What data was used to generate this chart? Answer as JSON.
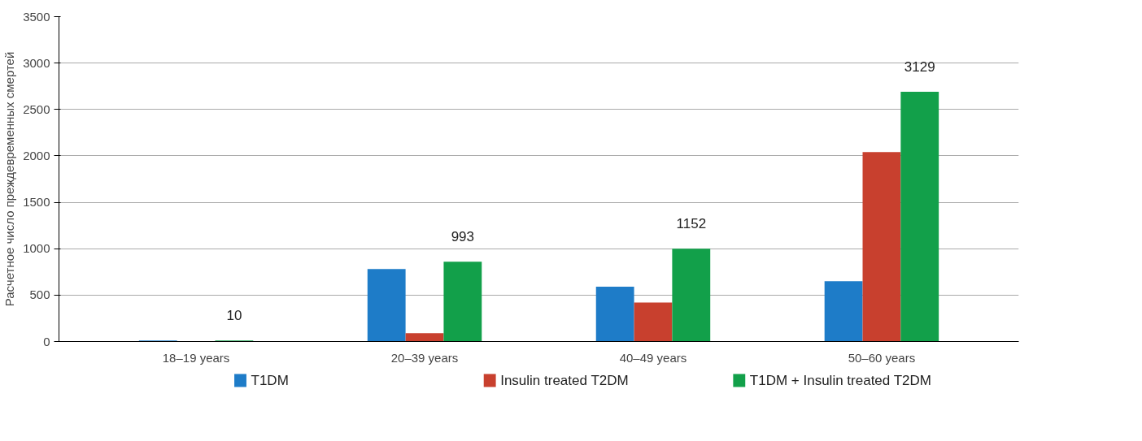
{
  "chart_data": {
    "type": "bar",
    "ylabel": "Расчетное число преждевременных смертей",
    "categories": [
      "18–19 years",
      "20–39 years",
      "40–49 years",
      "50–60 years"
    ],
    "series": [
      {
        "name": "T1DM",
        "color": "#1e7cc8",
        "values": [
          10,
          780,
          590,
          650
        ]
      },
      {
        "name": "Insulin treated T2DM",
        "color": "#c8402e",
        "values": [
          0,
          90,
          420,
          2040
        ]
      },
      {
        "name": "T1DM + Insulin treated T2DM",
        "color": "#12a04a",
        "values": [
          10,
          860,
          1000,
          2690
        ]
      }
    ],
    "annotations": [
      "10",
      "993",
      "1152",
      "3129"
    ],
    "ylim": [
      0,
      3500
    ],
    "yticks": [
      0,
      500,
      1000,
      1500,
      2000,
      2500,
      3000,
      3500
    ],
    "grid": "y",
    "legend": "bottom"
  }
}
